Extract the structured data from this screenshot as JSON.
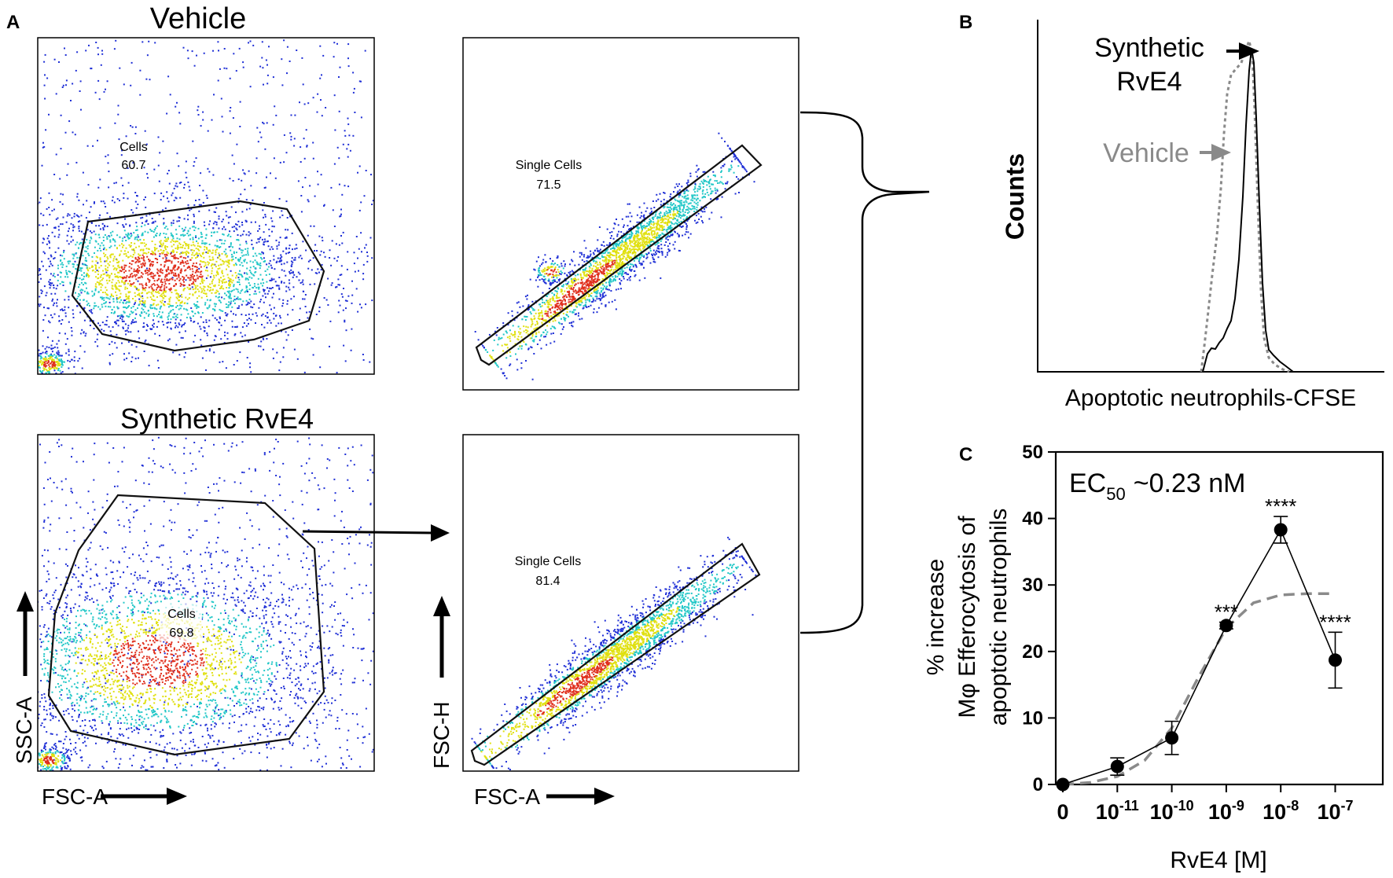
{
  "panel_labels": {
    "a": "A",
    "b": "B",
    "c": "C"
  },
  "panel_a": {
    "vehicle_title": "Vehicle",
    "rve4_title": "Synthetic RvE4",
    "cells_gate_label": "Cells",
    "single_cells_gate_label": "Single Cells",
    "vehicle_cells_pct": "60.7",
    "vehicle_single_pct": "71.5",
    "rve4_cells_pct": "69.8",
    "rve4_single_pct": "81.4",
    "ssc_axis": "SSC-A",
    "fsc_axis": "FSC-A",
    "fsch_axis": "FSC-H",
    "colors": {
      "low": "#1f2fd6",
      "mid": "#22c7c7",
      "high": "#e0e010",
      "peak": "#e0301e"
    }
  },
  "panel_b": {
    "ylabel": "Counts",
    "xlabel": "Apoptotic neutrophils-CFSE",
    "legend_rve4_line1": "Synthetic",
    "legend_rve4_line2": "RvE4",
    "legend_vehicle": "Vehicle",
    "rve4_color": "#000000",
    "vehicle_color": "#8a8a8a"
  },
  "chart_data": {
    "type": "scatter",
    "title": "EC50 ~0.23 nM",
    "ec50_prefix": "EC",
    "ec50_sub": "50",
    "ec50_value": "~0.23 nM",
    "xlabel": "RvE4 [M]",
    "ylabel_line1": "% increase",
    "ylabel_line2": "Mφ Efferocytosis of",
    "ylabel_line3": "apoptotic  neutrophils",
    "ylim": [
      0,
      50
    ],
    "yticks": [
      0,
      10,
      20,
      30,
      40,
      50
    ],
    "xtick_labels": [
      {
        "base": "0",
        "exp": ""
      },
      {
        "base": "10",
        "exp": "-11"
      },
      {
        "base": "10",
        "exp": "-10"
      },
      {
        "base": "10",
        "exp": "-9"
      },
      {
        "base": "10",
        "exp": "-8"
      },
      {
        "base": "10",
        "exp": "-7"
      }
    ],
    "series": [
      {
        "name": "RvE4",
        "x_index": [
          0,
          1,
          2,
          3,
          4,
          5
        ],
        "values": [
          0,
          2.7,
          7.0,
          23.9,
          38.3,
          18.7
        ],
        "error": [
          0,
          1.3,
          2.5,
          0.5,
          2.0,
          4.2
        ],
        "significance": [
          "",
          "",
          "",
          "***",
          "****",
          "****"
        ]
      },
      {
        "name": "Fit (dashed)",
        "x_index": [
          0,
          0.5,
          1,
          1.5,
          2,
          2.5,
          3,
          3.5,
          4,
          4.5,
          5
        ],
        "values": [
          0,
          0.3,
          1.2,
          3.6,
          8.5,
          16.3,
          23.5,
          27.3,
          28.5,
          28.7,
          28.7
        ]
      }
    ]
  }
}
